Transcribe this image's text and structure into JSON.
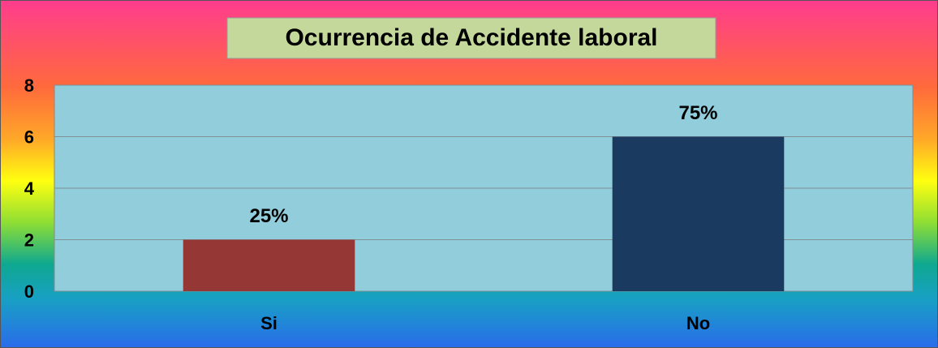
{
  "chart_data": {
    "type": "bar",
    "title": "Ocurrencia de Accidente laboral",
    "categories": [
      "Si",
      "No"
    ],
    "values": [
      2,
      6
    ],
    "value_labels": [
      "25%",
      "75%"
    ],
    "colors": [
      "#953735",
      "#1b3a5f"
    ],
    "ylim": [
      0,
      8
    ],
    "yticks": [
      0,
      2,
      4,
      6,
      8
    ],
    "grid": true
  }
}
